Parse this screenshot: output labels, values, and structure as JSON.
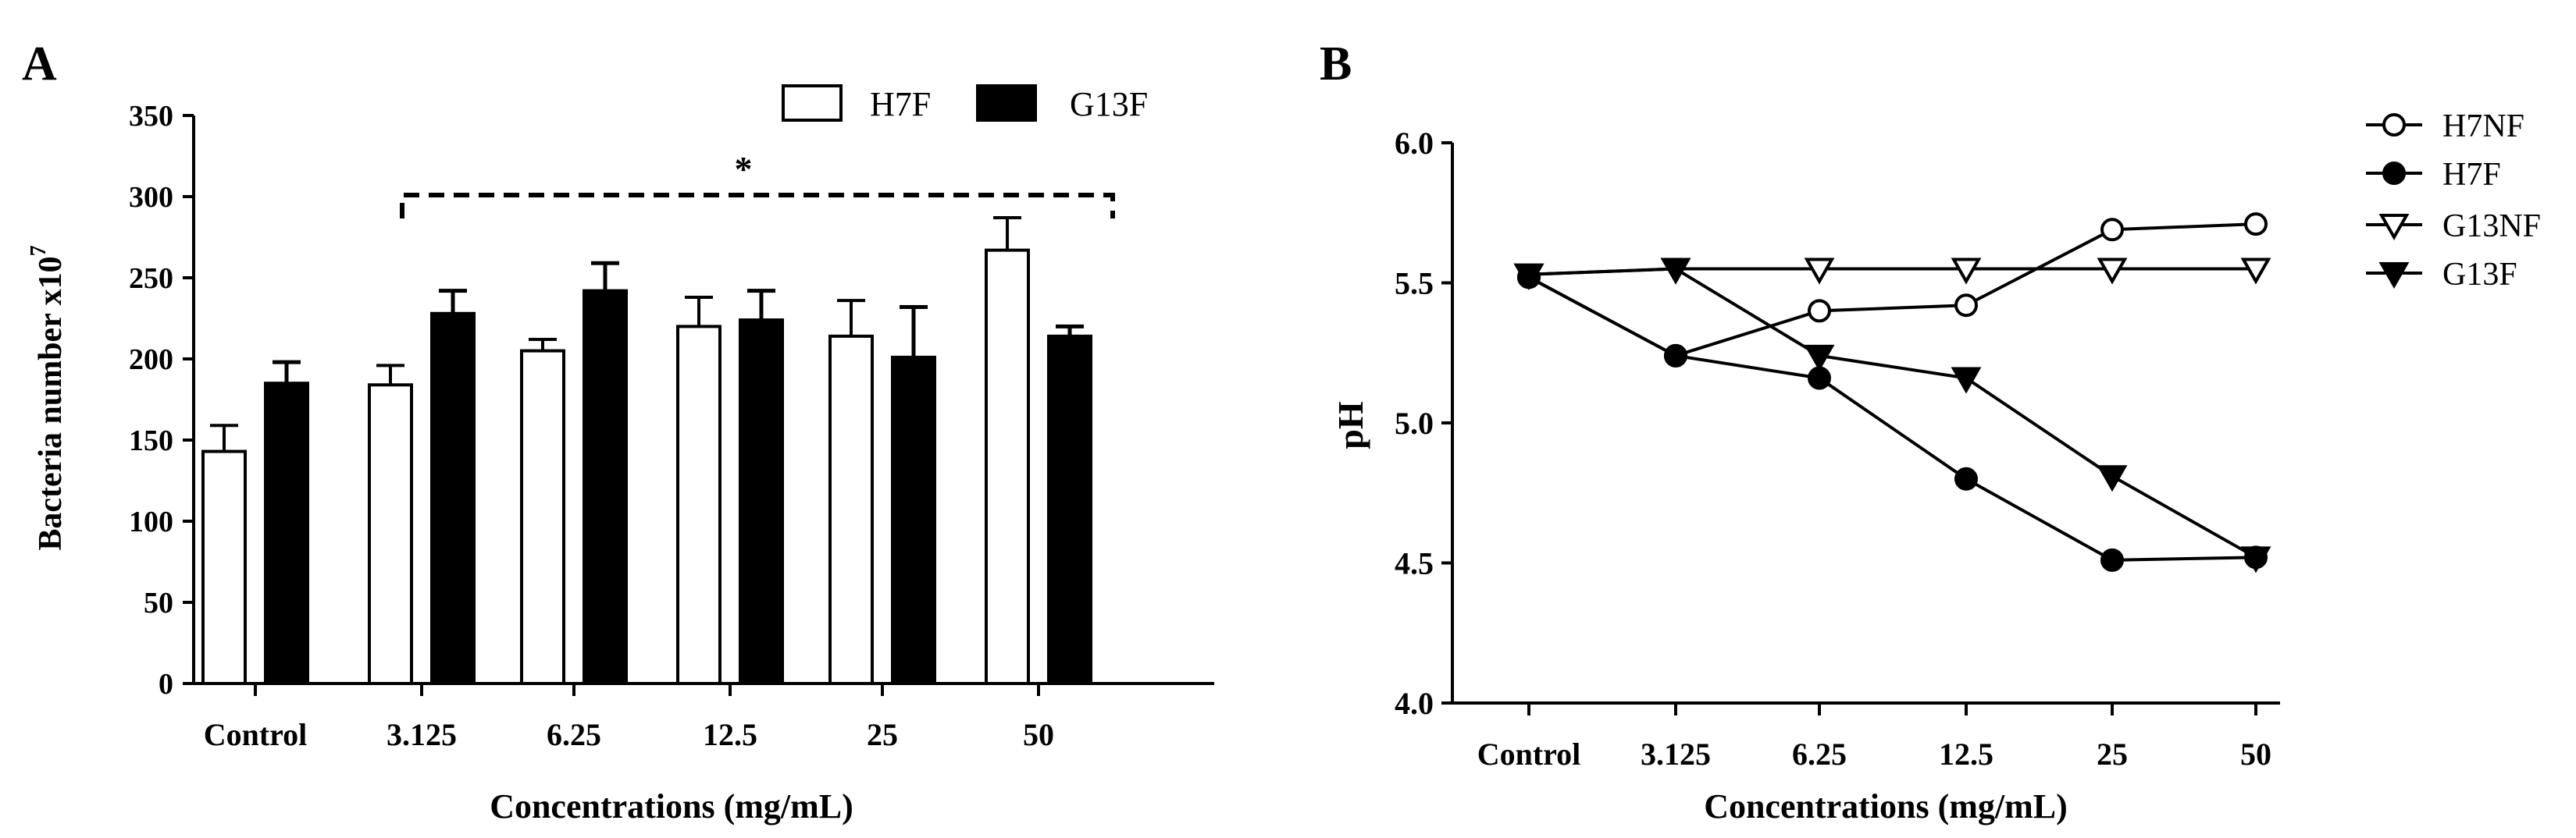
{
  "chart_data": [
    {
      "panel": "A",
      "type": "bar",
      "categories": [
        "Control",
        "3.125",
        "6.25",
        "12.5",
        "25",
        "50"
      ],
      "series": [
        {
          "name": "H7F",
          "fill": "white",
          "values": [
            143,
            184,
            205,
            220,
            214,
            267
          ],
          "errors": [
            16,
            12,
            7,
            18,
            22,
            20
          ]
        },
        {
          "name": "G13F",
          "fill": "black",
          "values": [
            185,
            228,
            242,
            224,
            201,
            214
          ],
          "errors": [
            13,
            14,
            17,
            18,
            31,
            6
          ]
        }
      ],
      "xlabel": "Concentrations (mg/mL)",
      "ylabel_main": "Bacteria  number x10",
      "ylabel_sup": "7",
      "ylim": [
        0,
        350
      ],
      "yticks": [
        0,
        50,
        100,
        150,
        200,
        250,
        300,
        350
      ],
      "significance": {
        "symbol": "*",
        "from_category": "3.125",
        "to_category": "50",
        "level": 300
      },
      "legend_position": "top-right"
    },
    {
      "panel": "B",
      "type": "line",
      "categories": [
        "Control",
        "3.125",
        "6.25",
        "12.5",
        "25",
        "50"
      ],
      "series": [
        {
          "name": "H7NF",
          "marker": "circle-open",
          "values": [
            5.52,
            5.24,
            5.4,
            5.42,
            5.69,
            5.71
          ]
        },
        {
          "name": "H7F",
          "marker": "circle-filled",
          "values": [
            5.52,
            5.24,
            5.16,
            4.8,
            4.51,
            4.52
          ]
        },
        {
          "name": "G13NF",
          "marker": "triangle-down-open",
          "values": [
            5.53,
            5.55,
            5.55,
            5.55,
            5.55,
            5.55
          ]
        },
        {
          "name": "G13F",
          "marker": "triangle-down-filled",
          "values": [
            5.53,
            5.55,
            5.24,
            5.16,
            4.81,
            4.52
          ]
        }
      ],
      "xlabel": "Concentrations (mg/mL)",
      "ylabel": "pH",
      "ylim": [
        4.0,
        6.0
      ],
      "yticks": [
        "4.0",
        "4.5",
        "5.0",
        "5.5",
        "6.0"
      ],
      "legend_position": "right"
    }
  ]
}
